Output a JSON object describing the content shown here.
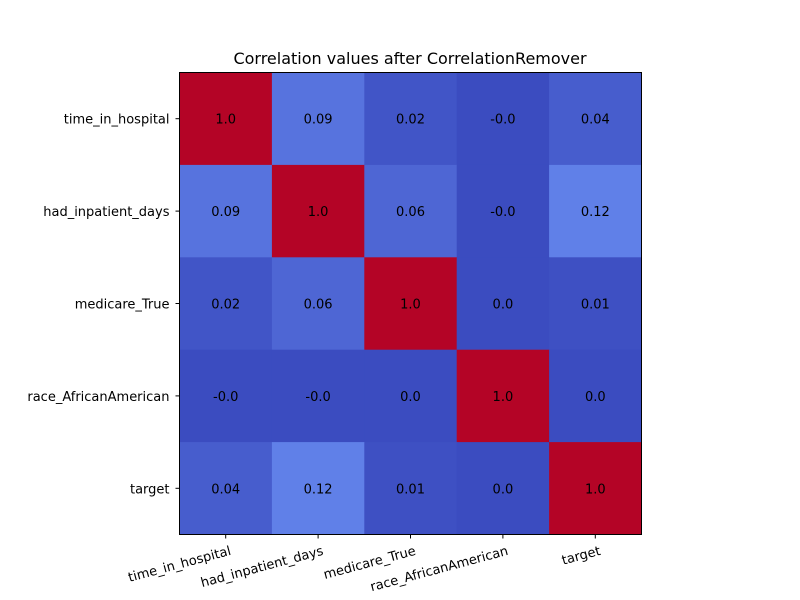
{
  "chart_data": {
    "type": "heatmap",
    "title": "Correlation values after CorrelationRemover",
    "x_labels": [
      "time_in_hospital",
      "had_inpatient_days",
      "medicare_True",
      "race_AfricanAmerican",
      "target"
    ],
    "y_labels": [
      "time_in_hospital",
      "had_inpatient_days",
      "medicare_True",
      "race_AfricanAmerican",
      "target"
    ],
    "values": [
      [
        1.0,
        0.09,
        0.02,
        -0.0,
        0.04
      ],
      [
        0.09,
        1.0,
        0.06,
        -0.0,
        0.12
      ],
      [
        0.02,
        0.06,
        1.0,
        0.0,
        0.01
      ],
      [
        -0.0,
        -0.0,
        0.0,
        1.0,
        0.0
      ],
      [
        0.04,
        0.12,
        0.01,
        0.0,
        1.0
      ]
    ],
    "cell_labels": [
      [
        "1.0",
        "0.09",
        "0.02",
        "-0.0",
        "0.04"
      ],
      [
        "0.09",
        "1.0",
        "0.06",
        "-0.0",
        "0.12"
      ],
      [
        "0.02",
        "0.06",
        "1.0",
        "0.0",
        "0.01"
      ],
      [
        "-0.0",
        "-0.0",
        "0.0",
        "1.0",
        "0.0"
      ],
      [
        "0.04",
        "0.12",
        "0.01",
        "0.0",
        "1.0"
      ]
    ],
    "colormap": "coolwarm",
    "vrange": [
      0.0,
      1.0
    ],
    "xlabel": "",
    "ylabel": ""
  }
}
